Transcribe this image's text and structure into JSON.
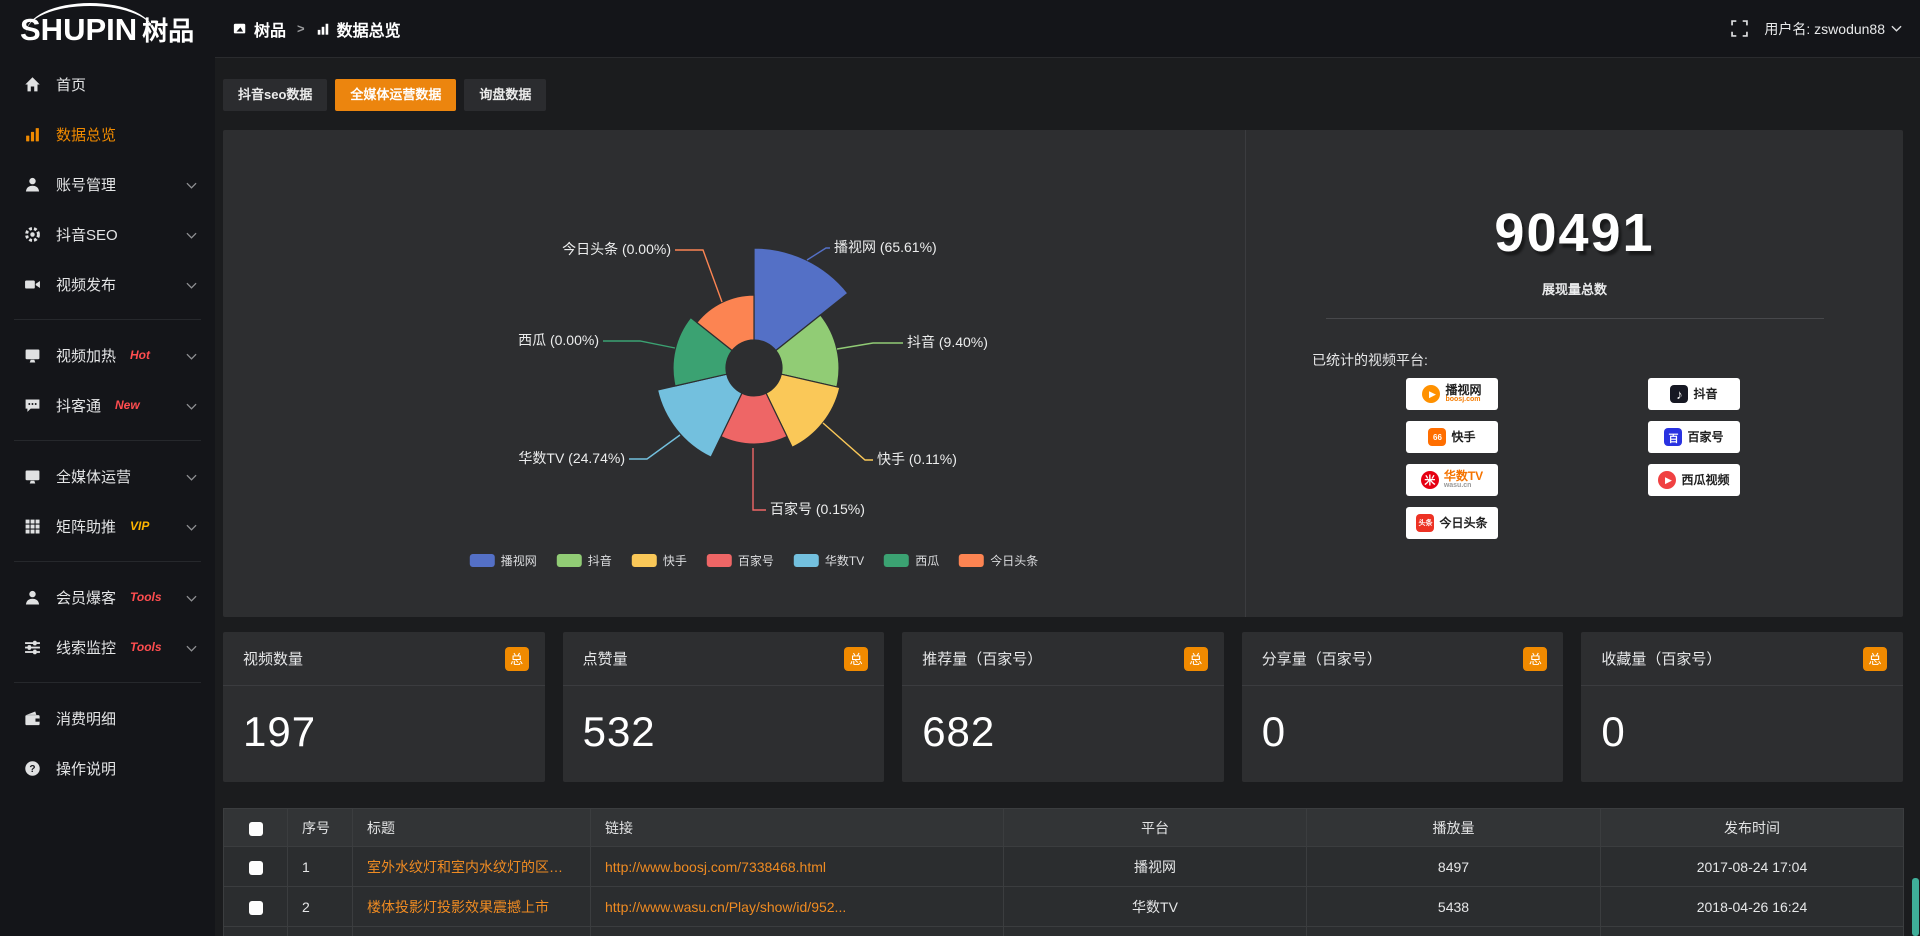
{
  "topbar": {
    "logo_en": "SHUPIN",
    "logo_cn": "树品",
    "breadcrumb_root": "树品",
    "breadcrumb_sep": ">",
    "breadcrumb_current": "数据总览",
    "username": "用户名: zswodun88"
  },
  "sidebar": {
    "items": [
      {
        "label": "首页",
        "icon": "home-icon"
      },
      {
        "label": "数据总览",
        "icon": "chart-icon",
        "active": true
      },
      {
        "label": "账号管理",
        "icon": "user-icon",
        "chevron": true
      },
      {
        "label": "抖音SEO",
        "icon": "gear-icon",
        "chevron": true
      },
      {
        "label": "视频发布",
        "icon": "video-icon",
        "chevron": true
      },
      {
        "divider": true
      },
      {
        "label": "视频加热",
        "icon": "monitor-icon",
        "badge": "Hot",
        "badge_color": "#ff4d4f",
        "chevron": true
      },
      {
        "label": "抖客通",
        "icon": "chat-icon",
        "badge": "New",
        "badge_color": "#ff4d4f",
        "chevron": true
      },
      {
        "divider": true
      },
      {
        "label": "全媒体运营",
        "icon": "monitor-icon",
        "chevron": true
      },
      {
        "label": "矩阵助推",
        "icon": "grid-icon",
        "badge": "VIP",
        "badge_color": "#ffb400",
        "chevron": true
      },
      {
        "divider": true
      },
      {
        "label": "会员爆客",
        "icon": "user-icon",
        "badge": "Tools",
        "badge_color": "#ff4d4f",
        "chevron": true
      },
      {
        "label": "线索监控",
        "icon": "sliders-icon",
        "badge": "Tools",
        "badge_color": "#ff4d4f",
        "chevron": true
      },
      {
        "divider": true
      },
      {
        "label": "消费明细",
        "icon": "wallet-icon"
      },
      {
        "label": "操作说明",
        "icon": "help-icon"
      }
    ]
  },
  "tabs": [
    {
      "label": "抖音seo数据",
      "active": false
    },
    {
      "label": "全媒体运营数据",
      "active": true
    },
    {
      "label": "询盘数据",
      "active": false
    }
  ],
  "chart_data": {
    "type": "pie",
    "subtype": "nightingale-rose",
    "label_format": "{name} ({percent}%)",
    "legend_position": "bottom",
    "hole_radius_px": 28,
    "items": [
      {
        "name": "播视网",
        "percent": 65.61,
        "color": "#5470c6",
        "radius": 120
      },
      {
        "name": "抖音",
        "percent": 9.4,
        "color": "#91cc75",
        "radius": 85
      },
      {
        "name": "快手",
        "percent": 0.11,
        "color": "#fac858",
        "radius": 88
      },
      {
        "name": "百家号",
        "percent": 0.15,
        "color": "#ee6666",
        "radius": 76
      },
      {
        "name": "华数TV",
        "percent": 24.74,
        "color": "#73c0de",
        "radius": 99
      },
      {
        "name": "西瓜",
        "percent": 0.0,
        "color": "#3ba272",
        "radius": 81
      },
      {
        "name": "今日头条",
        "percent": 0.0,
        "color": "#fc8452",
        "radius": 73
      }
    ],
    "legend": [
      "播视网",
      "抖音",
      "快手",
      "百家号",
      "华数TV",
      "西瓜",
      "今日头条"
    ]
  },
  "summary": {
    "total": "90491",
    "total_label": "展现量总数",
    "platforms_label": "已统计的视频平台:",
    "platforms": [
      {
        "name": "播视网",
        "sub": "boosj.com",
        "sub_color": "#f57c00",
        "icon": "play-circle-icon",
        "color": "#ff9100"
      },
      {
        "name": "抖音",
        "icon": "music-note-icon",
        "color": "#161823"
      },
      {
        "name": "快手",
        "icon": "kuaishou-icon",
        "color": "#ff6e00"
      },
      {
        "name": "百家号",
        "icon": "baijiahao-icon",
        "color": "#2932e1"
      },
      {
        "name": "华数TV",
        "name_color": "#f57300",
        "sub": "wasu.cn",
        "sub_color": "#999999",
        "icon": "starburst-icon",
        "color": "#e60012"
      },
      {
        "name": "西瓜视频",
        "icon": "play-circle-icon",
        "color": "#f04142"
      },
      {
        "name": "今日头条",
        "icon": "toutiao-icon",
        "icon_text": "头条",
        "color": "#ed3224"
      }
    ]
  },
  "stat_cards": [
    {
      "title": "视频数量",
      "badge": "总",
      "value": "197"
    },
    {
      "title": "点赞量",
      "badge": "总",
      "value": "532"
    },
    {
      "title": "推荐量（百家号）",
      "badge": "总",
      "value": "682"
    },
    {
      "title": "分享量（百家号）",
      "badge": "总",
      "value": "0"
    },
    {
      "title": "收藏量（百家号）",
      "badge": "总",
      "value": "0"
    }
  ],
  "table": {
    "headers": [
      "序号",
      "标题",
      "链接",
      "平台",
      "播放量",
      "发布时间"
    ],
    "rows": [
      {
        "num": "1",
        "title": "室外水纹灯和室内水纹灯的区别和简介",
        "link": "http://www.boosj.com/7338468.html",
        "platform": "播视网",
        "plays": "8497",
        "time": "2017-08-24 17:04"
      },
      {
        "num": "2",
        "title": "楼体投影灯投影效果震撼上市",
        "link": "http://www.wasu.cn/Play/show/id/952...",
        "platform": "华数TV",
        "plays": "5438",
        "time": "2018-04-26 16:24"
      }
    ]
  },
  "colors": {
    "accent_orange": "#f08a00",
    "panel_bg": "#2d2e30",
    "sidebar_bg": "#141519",
    "link_orange": "#ef8b22",
    "hot_red": "#ff4d4f",
    "vip_yellow": "#ffb400"
  }
}
